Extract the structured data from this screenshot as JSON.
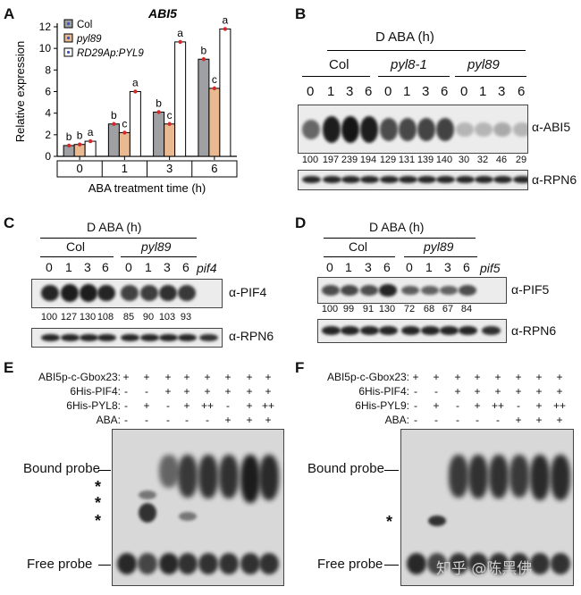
{
  "panelA": {
    "label": "A",
    "gene": "ABI5",
    "legend": [
      "Col",
      "pyl89",
      "RD29Ap:PYL9"
    ],
    "ylabel": "Relative expression",
    "xlabel": "ABA treatment time (h)",
    "chart_data": {
      "type": "bar",
      "title": "ABI5",
      "categories": [
        "0",
        "1",
        "3",
        "6"
      ],
      "series": [
        {
          "name": "Col",
          "values": [
            1.0,
            3.0,
            4.1,
            9.0
          ],
          "color": "#9ea0a3"
        },
        {
          "name": "pyl89",
          "values": [
            1.1,
            2.2,
            3.0,
            6.3
          ],
          "color": "#e9b992"
        },
        {
          "name": "RD29Ap:PYL9",
          "values": [
            1.4,
            6.0,
            10.6,
            11.8
          ],
          "color": "#ffffff"
        }
      ],
      "letters": [
        [
          "b",
          "b",
          "a"
        ],
        [
          "b",
          "c",
          "a"
        ],
        [
          "b",
          "c",
          "a"
        ],
        [
          "b",
          "c",
          "a"
        ]
      ],
      "xlabel": "ABA treatment time (h)",
      "ylabel": "Relative expression",
      "ylim": [
        0,
        12
      ],
      "yticks": [
        "0",
        "2",
        "4",
        "6",
        "8",
        "10",
        "12"
      ]
    }
  },
  "panelB": {
    "label": "B",
    "title": "D ABA (h)",
    "groups": [
      "Col",
      "pyl8-1",
      "pyl89"
    ],
    "times": [
      "0",
      "1",
      "3",
      "6",
      "0",
      "1",
      "3",
      "6",
      "0",
      "1",
      "3",
      "6"
    ],
    "target": "α-ABI5",
    "quant": [
      "100",
      "197",
      "239",
      "194",
      "129",
      "131",
      "139",
      "140",
      "30",
      "32",
      "46",
      "29"
    ],
    "loading": "α-RPN6"
  },
  "panelC": {
    "label": "C",
    "title": "D ABA (h)",
    "groups": [
      "Col",
      "pyl89"
    ],
    "times": [
      "0",
      "1",
      "3",
      "6",
      "0",
      "1",
      "3",
      "6"
    ],
    "extra": "pif4",
    "target": "α-PIF4",
    "quant": [
      "100",
      "127",
      "130",
      "108",
      "85",
      "90",
      "103",
      "93"
    ],
    "loading": "α-RPN6"
  },
  "panelD": {
    "label": "D",
    "title": "D ABA (h)",
    "groups": [
      "Col",
      "pyl89"
    ],
    "times": [
      "0",
      "1",
      "3",
      "6",
      "0",
      "1",
      "3",
      "6"
    ],
    "extra": "pif5",
    "target": "α-PIF5",
    "quant": [
      "100",
      "99",
      "91",
      "130",
      "72",
      "68",
      "67",
      "84"
    ],
    "loading": "α-RPN6"
  },
  "panelE": {
    "label": "E",
    "rows": [
      {
        "name": "ABI5p-c-Gbox23:",
        "marks": [
          "+",
          "+",
          "+",
          "+",
          "+",
          "+",
          "+",
          "+"
        ]
      },
      {
        "name": "6His-PIF4:",
        "marks": [
          "-",
          "-",
          "+",
          "+",
          "+",
          "+",
          "+",
          "+"
        ]
      },
      {
        "name": "6His-PYL8:",
        "marks": [
          "-",
          "+",
          "-",
          "+",
          "++",
          "-",
          "+",
          "++"
        ]
      },
      {
        "name": "ABA:",
        "marks": [
          "-",
          "-",
          "-",
          "-",
          "-",
          "+",
          "+",
          "+"
        ]
      }
    ],
    "bound": "Bound probe",
    "free": "Free probe",
    "stars": [
      "*",
      "*",
      "*"
    ]
  },
  "panelF": {
    "label": "F",
    "rows": [
      {
        "name": "ABI5p-c-Gbox23:",
        "marks": [
          "+",
          "+",
          "+",
          "+",
          "+",
          "+",
          "+",
          "+"
        ]
      },
      {
        "name": "6His-PIF4:",
        "marks": [
          "-",
          "-",
          "+",
          "+",
          "+",
          "+",
          "+",
          "+"
        ]
      },
      {
        "name": "6His-PYL9:",
        "marks": [
          "-",
          "+",
          "-",
          "+",
          "++",
          "-",
          "+",
          "++"
        ]
      },
      {
        "name": "ABA:",
        "marks": [
          "-",
          "-",
          "-",
          "-",
          "-",
          "+",
          "+",
          "+"
        ]
      }
    ],
    "bound": "Bound probe",
    "free": "Free probe",
    "stars": [
      "*"
    ]
  },
  "watermark": "知乎 @陈黑佛"
}
